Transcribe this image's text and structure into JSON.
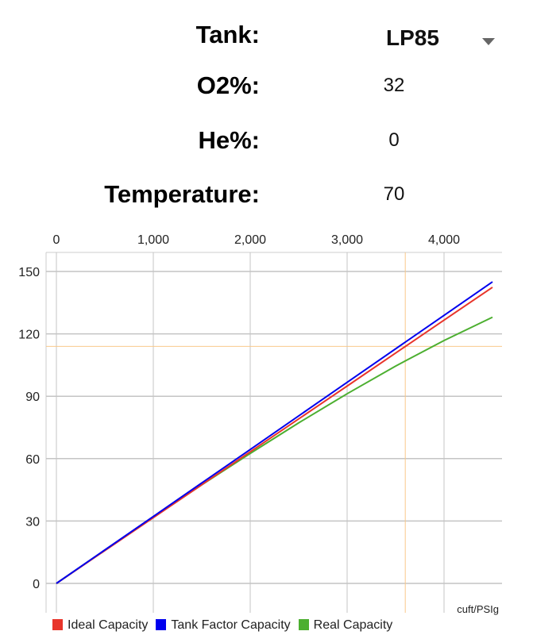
{
  "form": {
    "tank": {
      "label": "Tank:",
      "value": "LP85"
    },
    "o2": {
      "label": "O2%:",
      "value": "32"
    },
    "he": {
      "label": "He%:",
      "value": "0"
    },
    "temp": {
      "label": "Temperature:",
      "value": "70"
    }
  },
  "chart_data": {
    "type": "line",
    "xlabel": "",
    "ylabel": "",
    "unit_label": "cuft/PSIg",
    "xlim": [
      -100,
      4600
    ],
    "ylim": [
      -14,
      160
    ],
    "xticks": [
      0,
      1000,
      2000,
      3000,
      4000
    ],
    "xtick_labels": [
      "0",
      "1,000",
      "2,000",
      "3,000",
      "4,000"
    ],
    "yticks": [
      0,
      30,
      60,
      90,
      120,
      150
    ],
    "ytick_labels": [
      "0",
      "30",
      "60",
      "90",
      "120",
      "150"
    ],
    "grid": true,
    "crosshair": {
      "x": 3600,
      "y": 114,
      "color": "#f9c98b"
    },
    "legend": "bottom",
    "series": [
      {
        "name": "Ideal Capacity",
        "color": "#e8352b",
        "x": [
          0,
          1000,
          2000,
          3000,
          4000,
          4500
        ],
        "y": [
          0,
          31.6,
          63.3,
          94.9,
          126.6,
          142.4
        ]
      },
      {
        "name": "Tank Factor Capacity",
        "color": "#0000ee",
        "x": [
          0,
          1000,
          2000,
          3000,
          4000,
          4500
        ],
        "y": [
          0,
          32.2,
          64.4,
          96.7,
          128.9,
          145
        ]
      },
      {
        "name": "Real Capacity",
        "color": "#4caf30",
        "x": [
          0,
          500,
          1000,
          1500,
          2000,
          2500,
          3000,
          3500,
          4000,
          4500
        ],
        "y": [
          0,
          16,
          31.8,
          47.4,
          62.5,
          77.2,
          91.2,
          104.5,
          116.8,
          128
        ]
      }
    ]
  }
}
